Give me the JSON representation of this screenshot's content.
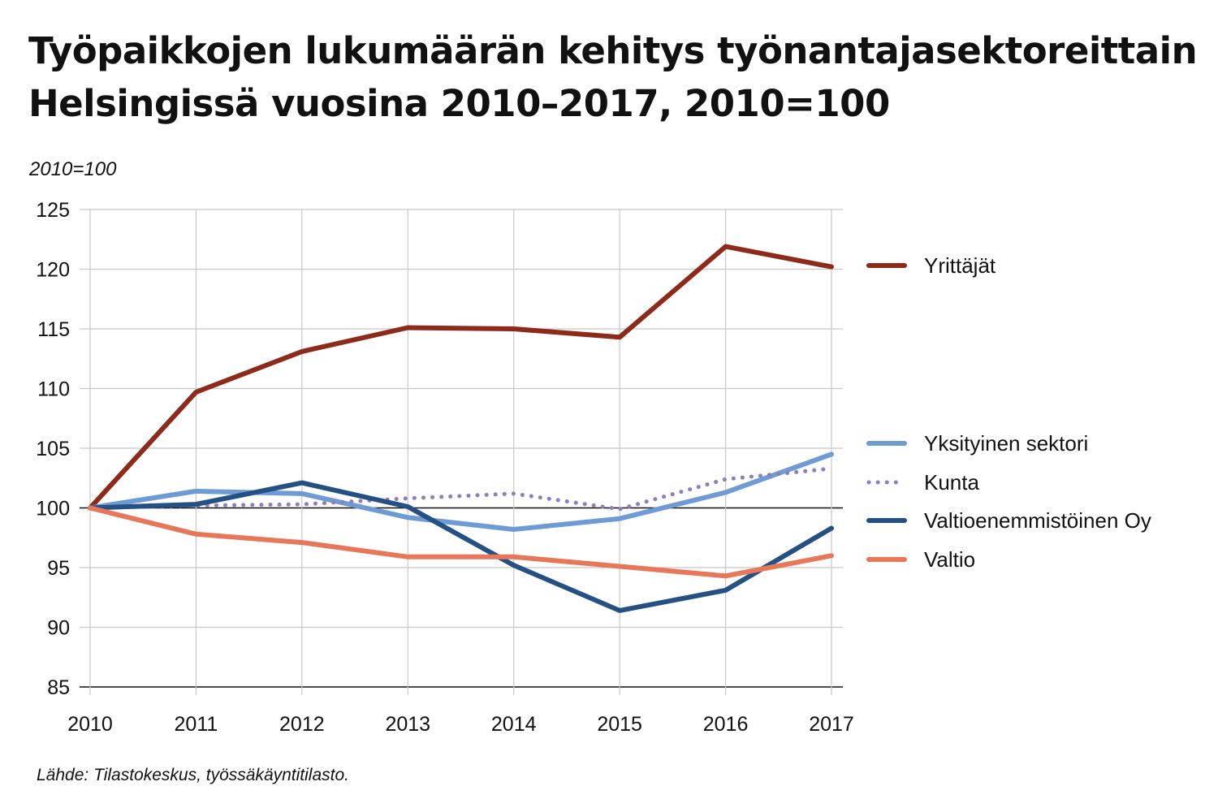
{
  "title_line1": "Työpaikkojen lukumäärän kehitys työnantajasektoreittain",
  "title_line2": "Helsingissä vuosina 2010–2017, 2010=100",
  "unit_label": "2010=100",
  "source": "Lähde: Tilastokeskus, työssäkäyntitilasto.",
  "chart_data": {
    "type": "line",
    "x": [
      "2010",
      "2011",
      "2012",
      "2013",
      "2014",
      "2015",
      "2016",
      "2017"
    ],
    "ylim": [
      85,
      125
    ],
    "yticks": [
      125,
      120,
      115,
      110,
      105,
      100,
      95,
      90,
      85
    ],
    "baseline": 100,
    "grid": true,
    "legend_position": "right",
    "series": [
      {
        "name": "Yrittäjät",
        "color": "#8e2a1a",
        "dashed": false,
        "values": [
          100,
          109.7,
          113.1,
          115.1,
          115.0,
          114.3,
          121.9,
          120.2
        ]
      },
      {
        "name": "Yksityinen sektori",
        "color": "#6f9bd4",
        "dashed": false,
        "values": [
          100,
          101.4,
          101.2,
          99.2,
          98.2,
          99.1,
          101.3,
          104.5
        ]
      },
      {
        "name": "Kunta",
        "color": "#8e7ebd",
        "dashed": true,
        "values": [
          100,
          100.2,
          100.3,
          100.8,
          101.2,
          99.9,
          102.4,
          103.3
        ]
      },
      {
        "name": "Valtioenemmistöinen Oy",
        "color": "#245083",
        "dashed": false,
        "values": [
          100,
          100.3,
          102.1,
          100.1,
          95.2,
          91.4,
          93.1,
          98.3
        ]
      },
      {
        "name": "Valtio",
        "color": "#e8775a",
        "dashed": false,
        "values": [
          100,
          97.8,
          97.1,
          95.9,
          95.9,
          95.1,
          94.3,
          96.0
        ]
      }
    ]
  }
}
